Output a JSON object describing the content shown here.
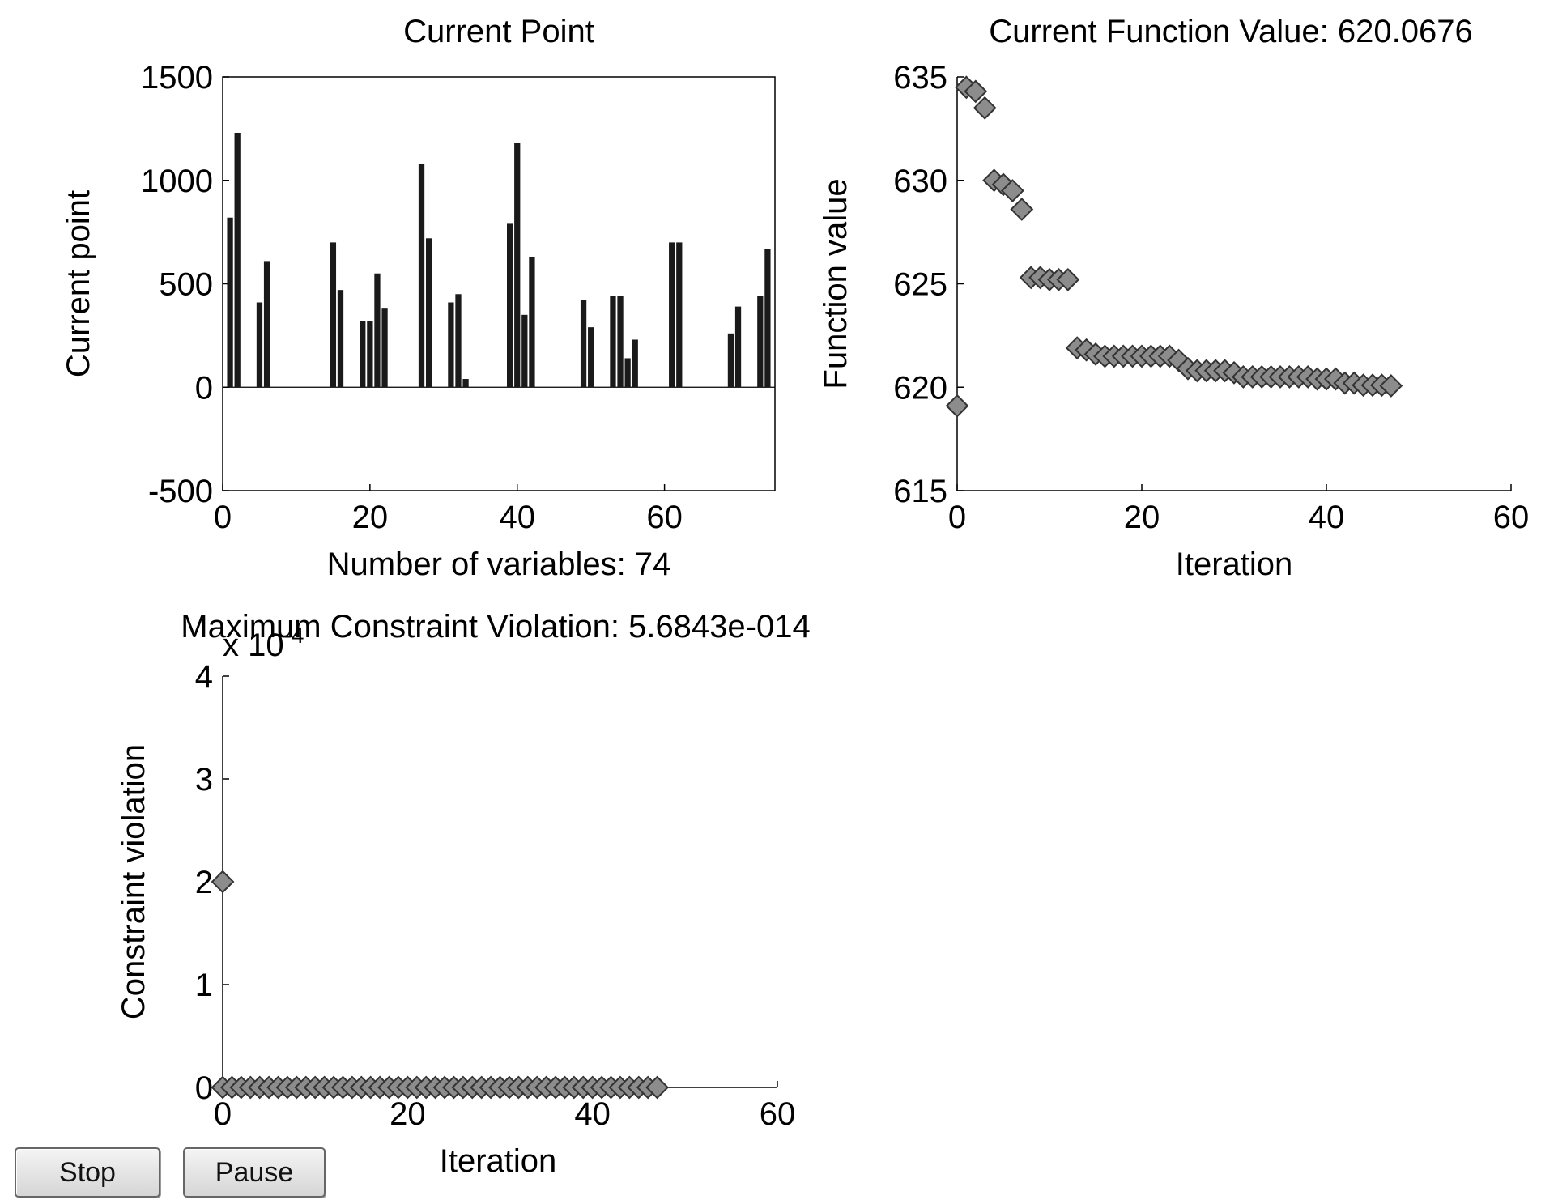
{
  "buttons": {
    "stop_label": "Stop",
    "pause_label": "Pause"
  },
  "colors": {
    "bar": "#1a1a1a",
    "marker_fill": "#8c8c8c",
    "marker_edge": "#333333",
    "axis": "#000000"
  },
  "chart_data": [
    {
      "type": "bar",
      "title": "Current Point",
      "xlabel": "Number of variables: 74",
      "ylabel": "Current point",
      "xlim": [
        0,
        75
      ],
      "ylim": [
        -500,
        1500
      ],
      "xticks": [
        0,
        20,
        40,
        60
      ],
      "yticks": [
        -500,
        0,
        500,
        1000,
        1500
      ],
      "x": [
        1,
        2,
        5,
        6,
        15,
        16,
        19,
        20,
        21,
        22,
        27,
        28,
        31,
        32,
        33,
        39,
        40,
        41,
        42,
        49,
        50,
        53,
        54,
        55,
        56,
        61,
        62,
        69,
        70,
        73,
        74
      ],
      "values": [
        820,
        1230,
        410,
        610,
        700,
        470,
        320,
        320,
        550,
        380,
        1080,
        720,
        410,
        450,
        40,
        790,
        1180,
        350,
        630,
        420,
        290,
        440,
        440,
        140,
        230,
        700,
        700,
        260,
        390,
        440,
        670
      ]
    },
    {
      "type": "scatter",
      "title": "Current Function Value: 620.0676",
      "xlabel": "Iteration",
      "ylabel": "Function value",
      "xlim": [
        0,
        60
      ],
      "ylim": [
        615,
        635
      ],
      "xticks": [
        0,
        20,
        40,
        60
      ],
      "yticks": [
        615,
        620,
        625,
        630,
        635
      ],
      "marker": "diamond",
      "x": [
        0,
        1,
        2,
        3,
        4,
        5,
        6,
        7,
        8,
        9,
        10,
        11,
        12,
        13,
        14,
        15,
        16,
        17,
        18,
        19,
        20,
        21,
        22,
        23,
        24,
        25,
        26,
        27,
        28,
        29,
        30,
        31,
        32,
        33,
        34,
        35,
        36,
        37,
        38,
        39,
        40,
        41,
        42,
        43,
        44,
        45,
        46,
        47
      ],
      "y": [
        619.1,
        634.5,
        634.3,
        633.5,
        630.0,
        629.8,
        629.5,
        628.6,
        625.3,
        625.3,
        625.2,
        625.2,
        625.2,
        621.9,
        621.8,
        621.6,
        621.5,
        621.5,
        621.5,
        621.5,
        621.5,
        621.5,
        621.5,
        621.5,
        621.3,
        620.9,
        620.8,
        620.8,
        620.8,
        620.8,
        620.7,
        620.5,
        620.5,
        620.5,
        620.5,
        620.5,
        620.5,
        620.5,
        620.5,
        620.4,
        620.4,
        620.4,
        620.2,
        620.2,
        620.1,
        620.1,
        620.1,
        620.07
      ]
    },
    {
      "type": "scatter",
      "title": "Maximum Constraint Violation: 5.6843e-014",
      "xlabel": "Iteration",
      "ylabel": "Constraint violation",
      "exponent_label": "x 10^-4",
      "xlim": [
        0,
        60
      ],
      "ylim": [
        0,
        4
      ],
      "xticks": [
        0,
        20,
        40,
        60
      ],
      "yticks": [
        0,
        1,
        2,
        3,
        4
      ],
      "marker": "diamond",
      "x": [
        0,
        0,
        1,
        2,
        3,
        4,
        5,
        6,
        7,
        8,
        9,
        10,
        11,
        12,
        13,
        14,
        15,
        16,
        17,
        18,
        19,
        20,
        21,
        22,
        23,
        24,
        25,
        26,
        27,
        28,
        29,
        30,
        31,
        32,
        33,
        34,
        35,
        36,
        37,
        38,
        39,
        40,
        41,
        42,
        43,
        44,
        45,
        46,
        47
      ],
      "y": [
        2,
        0,
        0,
        0,
        0,
        0,
        0,
        0,
        0,
        0,
        0,
        0,
        0,
        0,
        0,
        0,
        0,
        0,
        0,
        0,
        0,
        0,
        0,
        0,
        0,
        0,
        0,
        0,
        0,
        0,
        0,
        0,
        0,
        0,
        0,
        0,
        0,
        0,
        0,
        0,
        0,
        0,
        0,
        0,
        0,
        0,
        0,
        0,
        0
      ]
    }
  ]
}
